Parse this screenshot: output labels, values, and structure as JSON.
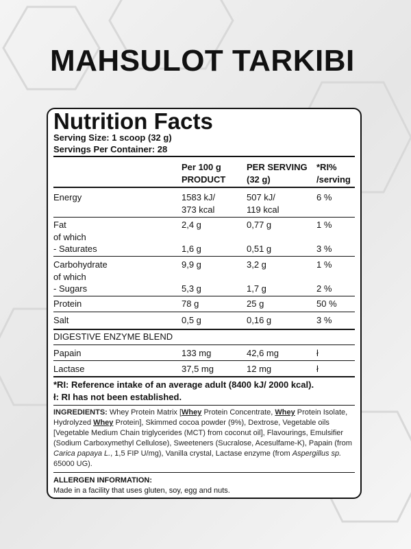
{
  "header": {
    "title": "MAHSULOT TARKIBI"
  },
  "label": {
    "title": "Nutrition Facts",
    "serving_size": "Serving Size: 1 scoop (32 g)",
    "servings_per_container": "Servings Per Container: 28",
    "columns": [
      [
        "Per 100 g",
        "PRODUCT"
      ],
      [
        "PER SERVING",
        "(32 g)"
      ],
      [
        "*RI%",
        "/serving"
      ]
    ],
    "rows": [
      {
        "lines": [
          [
            "Energy",
            "1583 kJ/",
            "507 kJ/",
            "6 %"
          ],
          [
            null,
            "373 kcal",
            "119 kcal",
            null
          ]
        ]
      },
      {
        "lines": [
          [
            "Fat",
            "2,4 g",
            "0,77 g",
            "1 %"
          ],
          [
            "of which",
            null,
            null,
            null
          ],
          [
            "- Saturates",
            "1,6 g",
            "0,51 g",
            "3 %"
          ]
        ]
      },
      {
        "lines": [
          [
            "Carbohydrate",
            "9,9 g",
            "3,2 g",
            "1 %"
          ],
          [
            "of which",
            null,
            null,
            null
          ],
          [
            "- Sugars",
            "5,3 g",
            "1,7 g",
            "2 %"
          ]
        ]
      },
      {
        "lines": [
          [
            "Protein",
            "78 g",
            "25 g",
            "50 %"
          ]
        ]
      },
      {
        "lines": [
          [
            "Salt",
            "0,5 g",
            "0,16 g",
            "3 %"
          ]
        ]
      },
      {
        "lines": [
          [
            "DIGESTIVE ENZYME BLEND",
            null,
            null,
            null
          ]
        ]
      },
      {
        "lines": [
          [
            "Papain",
            "133 mg",
            "42,6 mg",
            "ł"
          ]
        ]
      },
      {
        "lines": [
          [
            "Lactase",
            "37,5 mg",
            "12 mg",
            "ł"
          ]
        ]
      }
    ],
    "footnotes": [
      "*RI: Reference intake of an average adult (8400 kJ/ 2000 kcal).",
      "ł: RI has not been established."
    ],
    "ingredients": [
      {
        "text": "INGREDIENTS:",
        "style": "b"
      },
      {
        "text": " Whey Protein Matrix ["
      },
      {
        "text": "Whey",
        "style": "u"
      },
      {
        "text": " Protein Concentrate, "
      },
      {
        "text": "Whey",
        "style": "u"
      },
      {
        "text": " Protein Isolate, Hydrolyzed "
      },
      {
        "text": "Whey",
        "style": "u"
      },
      {
        "text": " Protein], Skimmed cocoa powder (9%), Dextrose, Vegetable oils [Vegetable Medium Chain triglycerides (MCT) from coconut oil], Flavourings, Emulsifier (Sodium Carboxymethyl Cellulose), Sweeteners (Sucralose, Acesulfame-K), Papain (from "
      },
      {
        "text": "Carica papaya L.",
        "style": "i"
      },
      {
        "text": ", 1,5 FIP U/mg), Vanilla crystal, Lactase enzyme (from "
      },
      {
        "text": "Aspergillus sp.",
        "style": "i"
      },
      {
        "text": " 65000 UG)."
      }
    ],
    "allergen_title": "ALLERGEN INFORMATION:",
    "allergen_text": "Made in a facility that uses gluten, soy, egg and nuts."
  }
}
